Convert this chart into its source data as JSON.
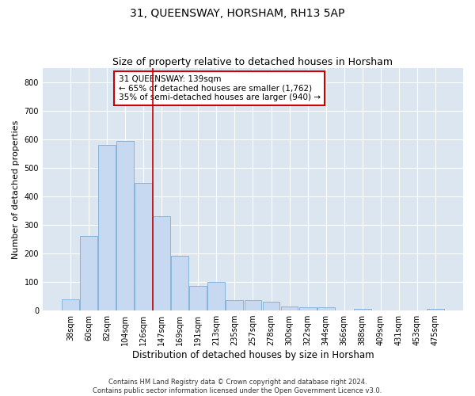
{
  "title": "31, QUEENSWAY, HORSHAM, RH13 5AP",
  "subtitle": "Size of property relative to detached houses in Horsham",
  "xlabel": "Distribution of detached houses by size in Horsham",
  "ylabel": "Number of detached properties",
  "categories": [
    "38sqm",
    "60sqm",
    "82sqm",
    "104sqm",
    "126sqm",
    "147sqm",
    "169sqm",
    "191sqm",
    "213sqm",
    "235sqm",
    "257sqm",
    "278sqm",
    "300sqm",
    "322sqm",
    "344sqm",
    "366sqm",
    "388sqm",
    "409sqm",
    "431sqm",
    "453sqm",
    "475sqm"
  ],
  "values": [
    40,
    260,
    580,
    595,
    447,
    330,
    193,
    85,
    100,
    37,
    36,
    30,
    13,
    11,
    10,
    0,
    7,
    0,
    0,
    0,
    5
  ],
  "bar_color": "#c6d9f0",
  "bar_edge_color": "#7aadd4",
  "vline_x": 4.5,
  "vline_color": "#cc0000",
  "annotation_text": "31 QUEENSWAY: 139sqm\n← 65% of detached houses are smaller (1,762)\n35% of semi-detached houses are larger (940) →",
  "annotation_box_color": "#ffffff",
  "annotation_box_edgecolor": "#cc0000",
  "ylim": [
    0,
    850
  ],
  "yticks": [
    0,
    100,
    200,
    300,
    400,
    500,
    600,
    700,
    800
  ],
  "background_color": "#dce6f1",
  "footer": "Contains HM Land Registry data © Crown copyright and database right 2024.\nContains public sector information licensed under the Open Government Licence v3.0.",
  "title_fontsize": 10,
  "subtitle_fontsize": 9,
  "xlabel_fontsize": 8.5,
  "ylabel_fontsize": 8,
  "tick_fontsize": 7,
  "annotation_fontsize": 7.5,
  "footer_fontsize": 6
}
